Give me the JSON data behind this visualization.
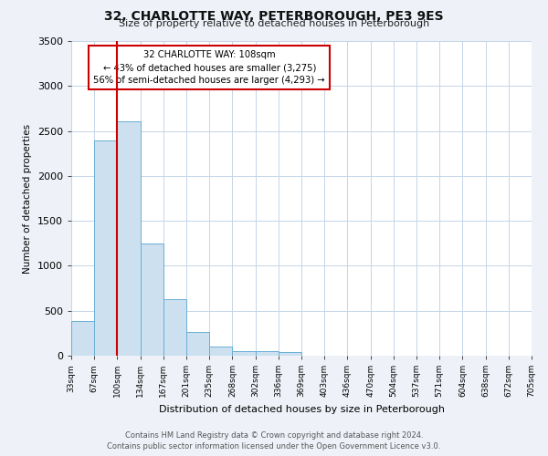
{
  "title": "32, CHARLOTTE WAY, PETERBOROUGH, PE3 9ES",
  "subtitle": "Size of property relative to detached houses in Peterborough",
  "xlabel": "Distribution of detached houses by size in Peterborough",
  "ylabel": "Number of detached properties",
  "bar_values": [
    390,
    2390,
    2610,
    1250,
    630,
    260,
    100,
    55,
    50,
    40,
    0,
    0,
    0,
    0,
    0,
    0,
    0,
    0,
    0,
    0
  ],
  "bin_labels": [
    "33sqm",
    "67sqm",
    "100sqm",
    "134sqm",
    "167sqm",
    "201sqm",
    "235sqm",
    "268sqm",
    "302sqm",
    "336sqm",
    "369sqm",
    "403sqm",
    "436sqm",
    "470sqm",
    "504sqm",
    "537sqm",
    "571sqm",
    "604sqm",
    "638sqm",
    "672sqm",
    "705sqm"
  ],
  "bar_color": "#cce0f0",
  "bar_edge_color": "#6aafd6",
  "ylim": [
    0,
    3500
  ],
  "yticks": [
    0,
    500,
    1000,
    1500,
    2000,
    2500,
    3000,
    3500
  ],
  "vline_color": "#cc0000",
  "annotation_title": "32 CHARLOTTE WAY: 108sqm",
  "annotation_line1": "← 43% of detached houses are smaller (3,275)",
  "annotation_line2": "56% of semi-detached houses are larger (4,293) →",
  "annotation_box_color": "#ffffff",
  "annotation_box_edge": "#cc0000",
  "footer_line1": "Contains HM Land Registry data © Crown copyright and database right 2024.",
  "footer_line2": "Contains public sector information licensed under the Open Government Licence v3.0.",
  "bg_color": "#eef2f8",
  "plot_bg_color": "#ffffff",
  "grid_color": "#c5d5e8"
}
